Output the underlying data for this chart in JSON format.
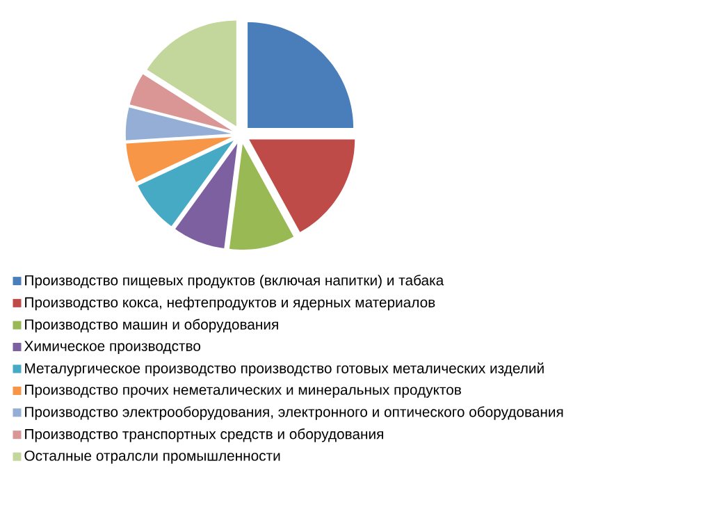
{
  "chart_data": {
    "type": "pie",
    "legend": "bottom",
    "categories": [
      "Производство пищевых продуктов (включая напитки) и табака",
      "Производство кокса, нефтепродуктов и ядерных материалов",
      "Производство машин и оборудования",
      "Химическое производство",
      "Металургическое производство  производство готовых металических изделий",
      "Производство прочих неметалических и минеральных продуктов",
      "Производство электрооборудования, электронного и оптического оборудования",
      "Производство транспортных средств и оборудования",
      "Осталные отралсли промышленности"
    ],
    "values": [
      25,
      17,
      10,
      8,
      8,
      6,
      5,
      5,
      16
    ],
    "colors": [
      "#4a7ebb",
      "#be4b48",
      "#98b954",
      "#7d60a0",
      "#46aac5",
      "#f79646",
      "#95aed6",
      "#d99694",
      "#c3d69b"
    ]
  }
}
